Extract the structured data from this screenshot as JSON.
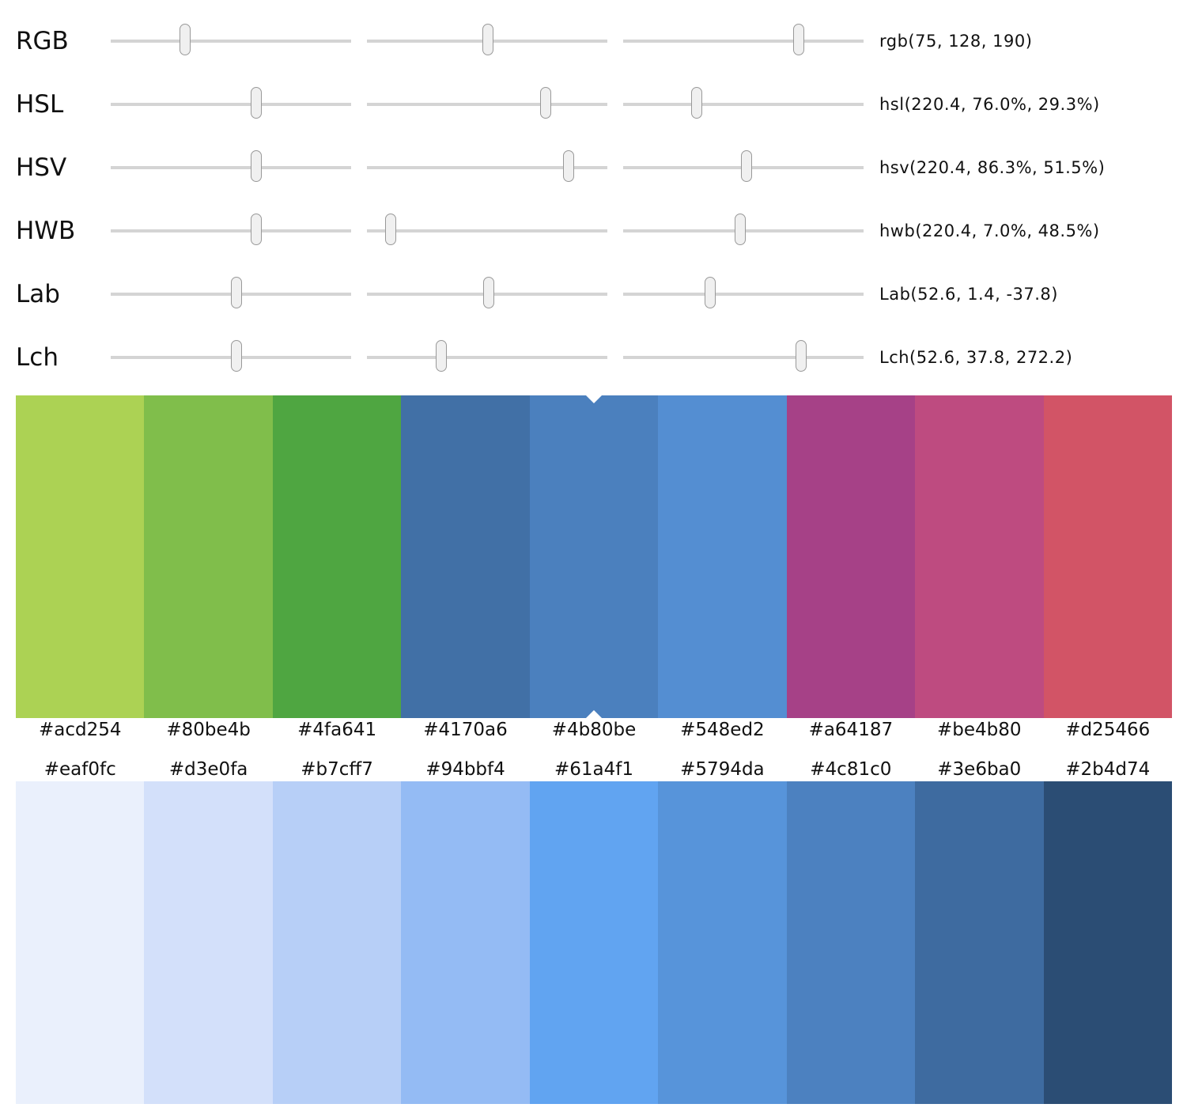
{
  "color_models": [
    {
      "name": "RGB",
      "value_text": "rgb(75, 128, 190)",
      "channels": [
        {
          "value": 75,
          "min": 0,
          "max": 255
        },
        {
          "value": 128,
          "min": 0,
          "max": 255
        },
        {
          "value": 190,
          "min": 0,
          "max": 255
        }
      ]
    },
    {
      "name": "HSL",
      "value_text": "hsl(220.4, 76.0%, 29.3%)",
      "channels": [
        {
          "value": 220.4,
          "min": 0,
          "max": 360
        },
        {
          "value": 76.0,
          "min": 0,
          "max": 100
        },
        {
          "value": 29.3,
          "min": 0,
          "max": 100
        }
      ]
    },
    {
      "name": "HSV",
      "value_text": "hsv(220.4, 86.3%, 51.5%)",
      "channels": [
        {
          "value": 220.4,
          "min": 0,
          "max": 360
        },
        {
          "value": 86.3,
          "min": 0,
          "max": 100
        },
        {
          "value": 51.5,
          "min": 0,
          "max": 100
        }
      ]
    },
    {
      "name": "HWB",
      "value_text": "hwb(220.4, 7.0%, 48.5%)",
      "channels": [
        {
          "value": 220.4,
          "min": 0,
          "max": 360
        },
        {
          "value": 7.0,
          "min": 0,
          "max": 100
        },
        {
          "value": 48.5,
          "min": 0,
          "max": 100
        }
      ]
    },
    {
      "name": "Lab",
      "value_text": "Lab(52.6, 1.4, -37.8)",
      "channels": [
        {
          "value": 52.6,
          "min": 0,
          "max": 100
        },
        {
          "value": 1.4,
          "min": -128,
          "max": 127
        },
        {
          "value": -37.8,
          "min": -128,
          "max": 127
        }
      ]
    },
    {
      "name": "Lch",
      "value_text": "Lch(52.6, 37.8, 272.2)",
      "channels": [
        {
          "value": 52.6,
          "min": 0,
          "max": 100
        },
        {
          "value": 37.8,
          "min": 0,
          "max": 128
        },
        {
          "value": 272.2,
          "min": 0,
          "max": 360
        }
      ]
    }
  ],
  "harmony_swatches": [
    "#acd254",
    "#80be4b",
    "#4fa641",
    "#4170a6",
    "#4b80be",
    "#548ed2",
    "#a64187",
    "#be4b80",
    "#d25466"
  ],
  "selected_index": 4,
  "shade_swatches": [
    "#eaf0fc",
    "#d3e0fa",
    "#b7cff7",
    "#94bbf4",
    "#61a4f1",
    "#5794da",
    "#4c81c0",
    "#3e6ba0",
    "#2b4d74"
  ]
}
